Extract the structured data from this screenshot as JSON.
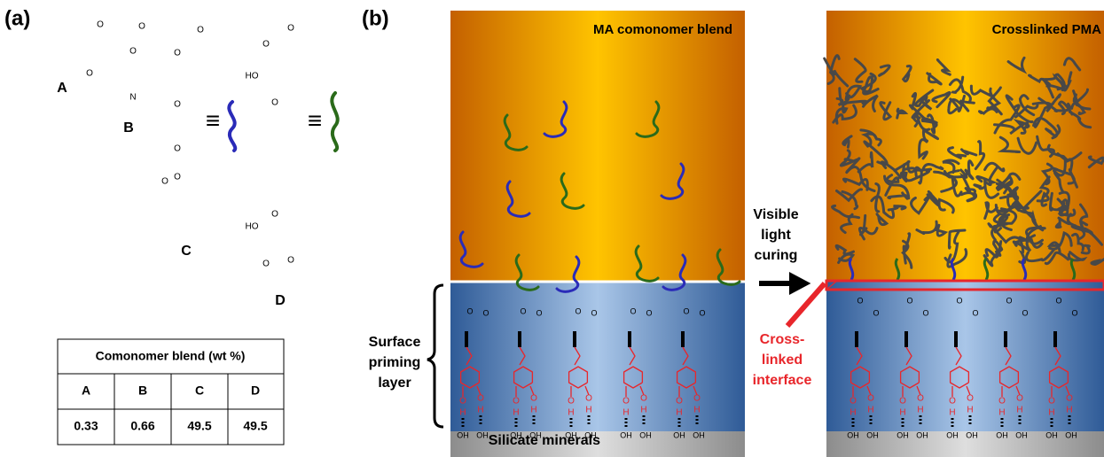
{
  "panel_a": {
    "label": "(a)",
    "compounds": [
      "A",
      "B",
      "C",
      "D"
    ],
    "table": {
      "title": "Comonomer blend (wt %)",
      "header": [
        "A",
        "B",
        "C",
        "D"
      ],
      "rows": [
        [
          "0.33",
          "0.66",
          "49.5",
          "49.5"
        ]
      ]
    }
  },
  "atoms": {
    "oxygen": "O",
    "nitrogen": "N",
    "hydrogen": "H",
    "hydroxy": "HO",
    "surface_hydroxyl": "OH",
    "equivalence": "≡"
  },
  "panel_b": {
    "label": "(b)",
    "left_title": "MA comonomer blend",
    "right_title": "Crosslinked PMA",
    "arrow_label": [
      "Visible",
      "light",
      "curing"
    ],
    "interface_label": [
      "Cross-",
      "linked",
      "interface"
    ],
    "layer_label": [
      "Surface",
      "priming",
      "layer"
    ],
    "substrate": "Silicate minerals"
  }
}
